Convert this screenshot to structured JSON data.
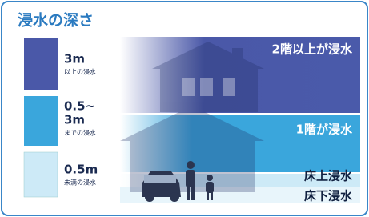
{
  "title": "浸水の深さ",
  "legend": [
    {
      "depth": "3m",
      "note": "以上の浸水"
    },
    {
      "depth": [
        "0.5~",
        "3m"
      ],
      "note": "までの浸水"
    },
    {
      "depth": "0.5m",
      "note": "未満の浸水"
    }
  ],
  "zones": [
    "2階以上が浸水",
    "1階が浸水",
    "床上浸水",
    "床下浸水"
  ]
}
